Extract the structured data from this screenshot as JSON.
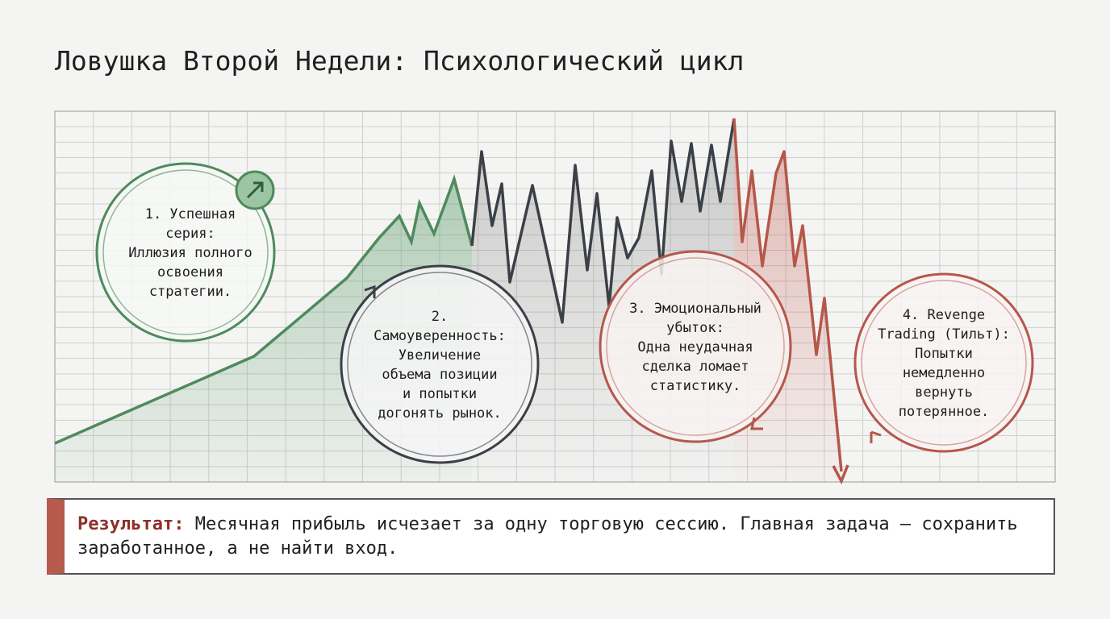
{
  "header": {
    "title": "Ловушка Второй Недели: Психологический цикл"
  },
  "stages": [
    {
      "lines": [
        "1. Успешная",
        "серия:",
        "Иллюзия полного",
        "освоения",
        "стратегии."
      ]
    },
    {
      "lines": [
        "2.",
        "Самоуверенность:",
        "Увеличение",
        "объема позиции",
        "и попытки",
        "догонять рынок."
      ]
    },
    {
      "lines": [
        "3. Эмоциональный",
        "убыток:",
        "Одна неудачная",
        "сделка ломает",
        "статистику."
      ]
    },
    {
      "lines": [
        "4. Revenge",
        "Trading (Тильт):",
        "Попытки",
        "немедленно",
        "вернуть",
        "потерянное."
      ]
    }
  ],
  "result": {
    "label": "Результат:",
    "text": "Месячная прибыль исчезает за одну торговую сессию. Главная задача — сохранить заработанное, а не найти вход."
  }
}
